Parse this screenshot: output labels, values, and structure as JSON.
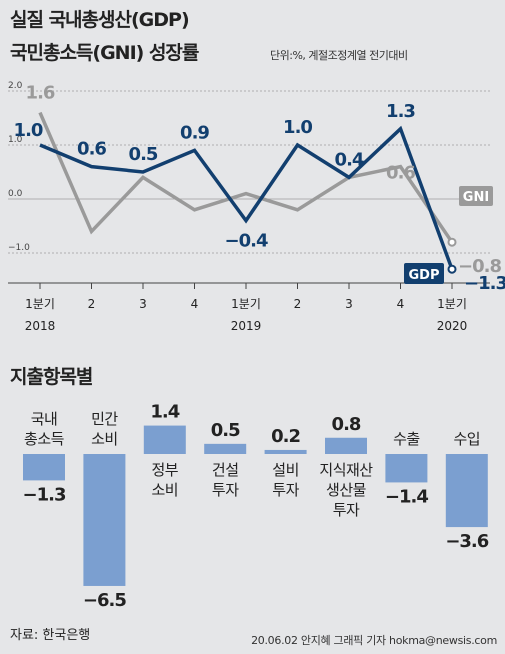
{
  "header": {
    "title_line1": "실질 국내총생산(GDP)",
    "title_line2": "국민총소득(GNI) 성장률",
    "unit_note": "단위:%, 계절조정계열 전기대비"
  },
  "section2": {
    "title": "지출항목별"
  },
  "footer": {
    "source": "자료: 한국은행",
    "credit": "20.06.02 안지혜 그래픽 기자 hokma@newsis.com"
  },
  "colors": {
    "gdp": "#123f6f",
    "gni": "#9a9a9a",
    "bar": "#7b9fd0",
    "background": "#e5e6e8"
  },
  "chart_data": [
    {
      "type": "line",
      "x": [
        "1분기",
        "2",
        "3",
        "4",
        "1분기",
        "2",
        "3",
        "4",
        "1분기"
      ],
      "year_labels": [
        {
          "index": 0,
          "label": "2018"
        },
        {
          "index": 4,
          "label": "2019"
        },
        {
          "index": 8,
          "label": "2020"
        }
      ],
      "y_ticks": [
        "2.0",
        "1.0",
        "0.0",
        "-1.0"
      ],
      "ylim": [
        -2.0,
        2.0
      ],
      "legend_placement": "right, next to line ends",
      "series": [
        {
          "name": "GNI",
          "values": [
            1.6,
            -0.6,
            0.4,
            -0.2,
            0.1,
            -0.2,
            0.4,
            0.6,
            -0.8
          ],
          "labels": [
            "1.6",
            "",
            "",
            "",
            "",
            "",
            "",
            "0.6",
            "-0.8"
          ]
        },
        {
          "name": "GDP",
          "values": [
            1.0,
            0.6,
            0.5,
            0.9,
            -0.4,
            1.0,
            0.4,
            1.3,
            -1.3
          ],
          "labels": [
            "1.0",
            "0.6",
            "0.5",
            "0.9",
            "-0.4",
            "1.0",
            "0.4",
            "1.3",
            "-1.3"
          ]
        }
      ]
    },
    {
      "type": "bar",
      "categories": [
        [
          "국내",
          "총소득"
        ],
        [
          "민간",
          "소비"
        ],
        [
          "정부",
          "소비"
        ],
        [
          "건설",
          "투자"
        ],
        [
          "설비",
          "투자"
        ],
        [
          "지식재산",
          "생산물",
          "투자"
        ],
        [
          "수출"
        ],
        [
          "수입"
        ]
      ],
      "values": [
        -1.3,
        -6.5,
        1.4,
        0.5,
        0.2,
        0.8,
        -1.4,
        -3.6
      ],
      "value_labels": [
        "-1.3",
        "-6.5",
        "1.4",
        "0.5",
        "0.2",
        "0.8",
        "-1.4",
        "-3.6"
      ]
    }
  ]
}
